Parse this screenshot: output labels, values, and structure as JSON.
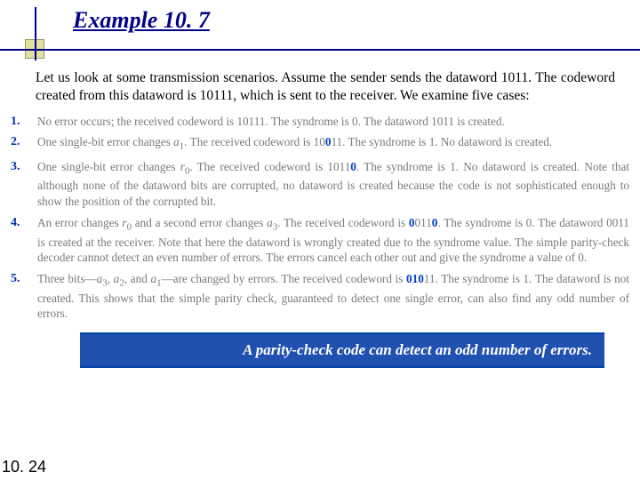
{
  "title": "Example 10. 7",
  "intro": "Let us look at some transmission scenarios. Assume the sender sends the dataword 1011. The codeword created from this dataword is 10111, which is sent to the receiver. We examine five cases:",
  "cases": [
    {
      "n": "1.",
      "html": "No error occurs; the received codeword is 10111. The syndrome is 0. The dataword 1011 is created."
    },
    {
      "n": "2.",
      "html": "One single-bit error changes <span class='sub'>a</span><sub>1</sub>. The received codeword is 10<span class='em'>0</span>11. The syndrome is 1. No dataword is created."
    },
    {
      "n": "3.",
      "html": "One single-bit error changes <span class='sub'>r</span><sub>0</sub>. The received codeword is 1011<span class='em'>0</span>. The syndrome is 1. No dataword is created. Note that although none of the dataword bits are corrupted, no dataword is created because the code is not sophisticated enough to show the position of the corrupted bit."
    },
    {
      "n": "4.",
      "html": "An error changes <span class='sub'>r</span><sub>0</sub> and a second error changes <span class='sub'>a</span><sub>3</sub>. The received codeword is <span class='em'>0</span>011<span class='em'>0</span>. The syndrome is 0. The dataword 0011 is created at the receiver. Note that here the dataword is wrongly created due to the syndrome value. The simple parity-check decoder cannot detect an even number of errors. The errors cancel each other out and give the syndrome a value of 0."
    },
    {
      "n": "5.",
      "html": "Three bits—<span class='sub'>a</span><sub>3</sub>, <span class='sub'>a</span><sub>2</sub>, and <span class='sub'>a</span><sub>1</sub>—are changed by errors. The received codeword is <span class='em'>010</span>11. The syndrome is 1. The dataword is not created. This shows that the simple parity check, guaranteed to detect one single error, can also find any odd number of errors."
    }
  ],
  "callout": "A parity-check code can detect an odd number of errors.",
  "page": "10. 24",
  "colors": {
    "title": "#000088",
    "accent": "#0033aa",
    "body_gray": "#7a7a7a",
    "callout_bg": "#2050b0"
  }
}
